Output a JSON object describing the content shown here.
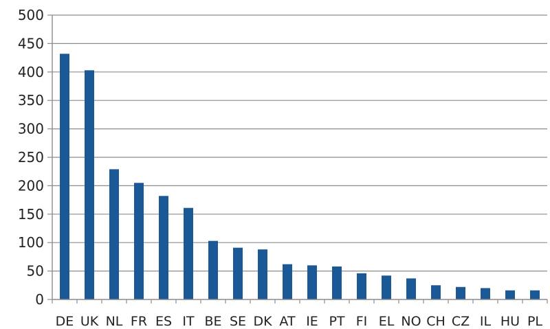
{
  "chart_data": {
    "type": "bar",
    "title": "",
    "xlabel": "",
    "ylabel": "",
    "categories": [
      "DE",
      "UK",
      "NL",
      "FR",
      "ES",
      "IT",
      "BE",
      "SE",
      "DK",
      "AT",
      "IE",
      "PT",
      "FI",
      "EL",
      "NO",
      "CH",
      "CZ",
      "IL",
      "HU",
      "PL"
    ],
    "values": [
      432,
      403,
      229,
      205,
      182,
      161,
      103,
      91,
      88,
      62,
      60,
      58,
      46,
      42,
      37,
      25,
      22,
      20,
      16,
      16
    ],
    "ylim": [
      0,
      500
    ],
    "yticks": [
      0,
      50,
      100,
      150,
      200,
      250,
      300,
      350,
      400,
      450,
      500
    ],
    "grid": true,
    "legend": "none",
    "colors": {
      "bar": "#1b5896",
      "grid": "#8c8c8c",
      "axis": "#8c8c8c"
    }
  }
}
